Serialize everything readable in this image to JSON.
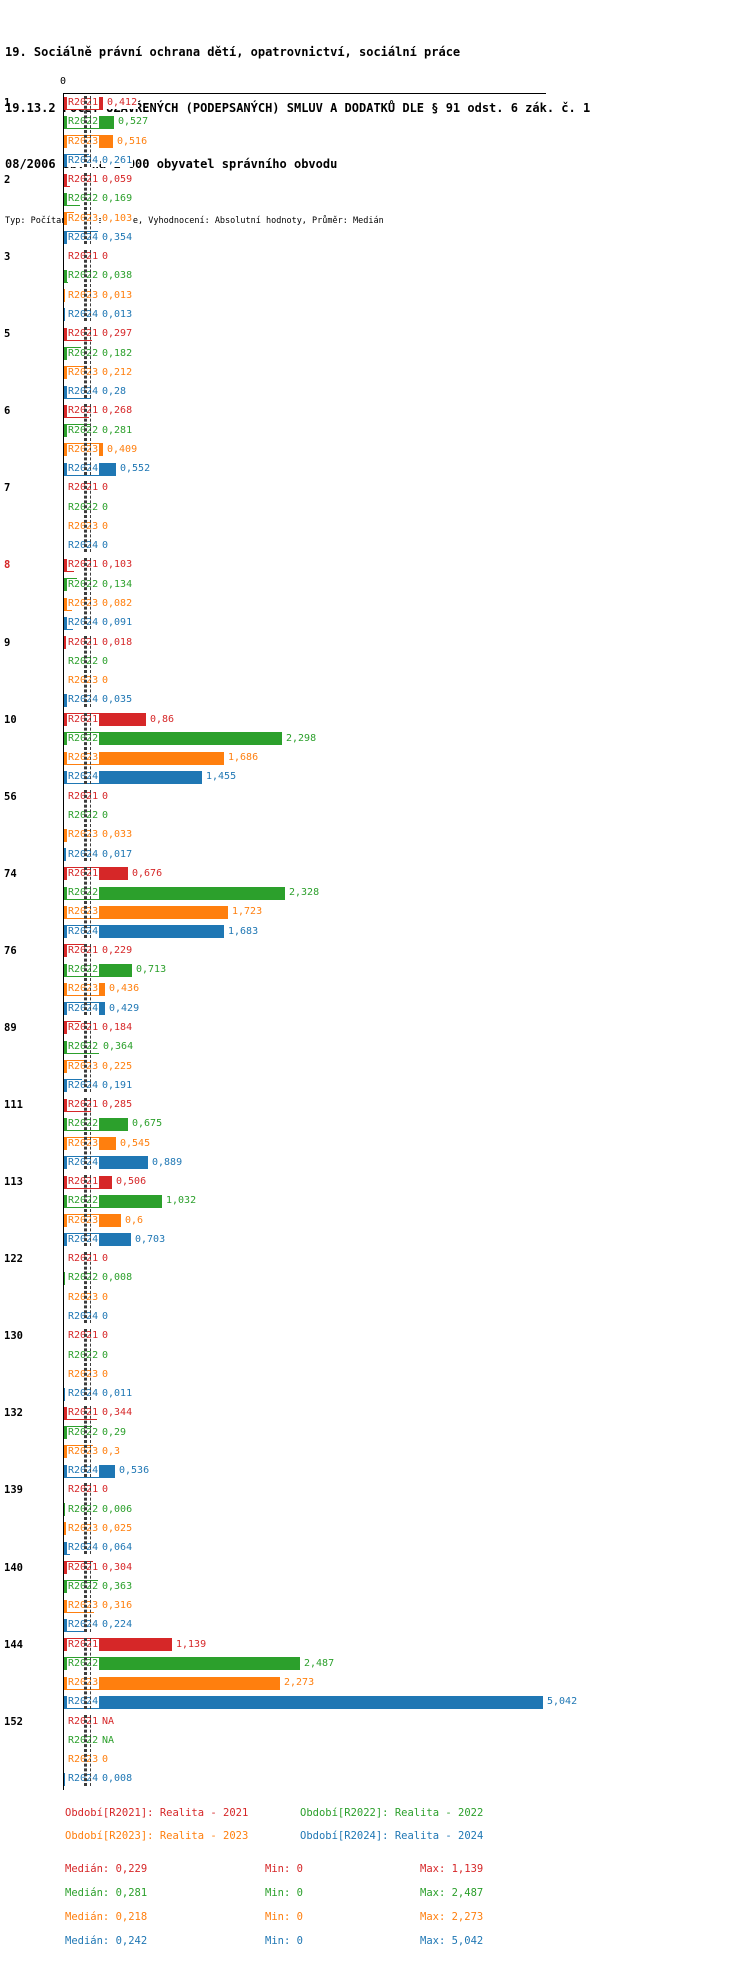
{
  "title": {
    "line1": "19. Sociálně právní ochrana dětí, opatrovnictví, sociální práce",
    "line2": "19.13.2 POČET UZAVŘENÝCH (PODEPSANÝCH) SMLUV A DODATKŮ DLE § 91 odst. 6 zák. č. 1",
    "line3": "08/2006 Sb. na 1 000 obyvatel správního obvodu",
    "line4": "Typ: Počítaný podle vzorce, Vyhodnocení: Absolutní hodnoty, Průměr: Medián"
  },
  "chart_data": {
    "type": "bar",
    "orientation": "horizontal",
    "grid": false,
    "x_axis": {
      "zero_label": "0",
      "xlim": [
        0,
        5.3
      ]
    },
    "stats_labels": {
      "median": "Medián",
      "min": "Min",
      "max": "Max"
    },
    "series": [
      {
        "name": "R2021",
        "color": "#d62728",
        "legend_label": "Období[R2021]: Realita - 2021",
        "median": 0.229,
        "median_display": "0,229",
        "min_display": "0",
        "max_display": "1,139"
      },
      {
        "name": "R2022",
        "color": "#2ca02c",
        "legend_label": "Období[R2022]: Realita - 2022",
        "median": 0.281,
        "median_display": "0,281",
        "min_display": "0",
        "max_display": "2,487"
      },
      {
        "name": "R2023",
        "color": "#ff7f0e",
        "legend_label": "Období[R2023]: Realita - 2023",
        "median": 0.218,
        "median_display": "0,218",
        "min_display": "0",
        "max_display": "2,273"
      },
      {
        "name": "R2024",
        "color": "#1f77b4",
        "legend_label": "Období[R2024]: Realita - 2024",
        "median": 0.242,
        "median_display": "0,242",
        "min_display": "0",
        "max_display": "5,042"
      }
    ],
    "groups": [
      {
        "id": "1",
        "highlight": false,
        "values": [
          0.412,
          0.527,
          0.516,
          0.261
        ],
        "display": [
          "0,412",
          "0,527",
          "0,516",
          "0,261"
        ]
      },
      {
        "id": "2",
        "highlight": false,
        "values": [
          0.059,
          0.169,
          0.103,
          0.354
        ],
        "display": [
          "0,059",
          "0,169",
          "0,103",
          "0,354"
        ]
      },
      {
        "id": "3",
        "highlight": false,
        "values": [
          0,
          0.038,
          0.013,
          0.013
        ],
        "display": [
          "0",
          "0,038",
          "0,013",
          "0,013"
        ]
      },
      {
        "id": "5",
        "highlight": false,
        "values": [
          0.297,
          0.182,
          0.212,
          0.28
        ],
        "display": [
          "0,297",
          "0,182",
          "0,212",
          "0,28"
        ]
      },
      {
        "id": "6",
        "highlight": false,
        "values": [
          0.268,
          0.281,
          0.409,
          0.552
        ],
        "display": [
          "0,268",
          "0,281",
          "0,409",
          "0,552"
        ]
      },
      {
        "id": "7",
        "highlight": false,
        "values": [
          0,
          0,
          0,
          0
        ],
        "display": [
          "0",
          "0",
          "0",
          "0"
        ]
      },
      {
        "id": "8",
        "highlight": true,
        "values": [
          0.103,
          0.134,
          0.082,
          0.091
        ],
        "display": [
          "0,103",
          "0,134",
          "0,082",
          "0,091"
        ]
      },
      {
        "id": "9",
        "highlight": false,
        "values": [
          0.018,
          0,
          0,
          0.035
        ],
        "display": [
          "0,018",
          "0",
          "0",
          "0,035"
        ]
      },
      {
        "id": "10",
        "highlight": false,
        "values": [
          0.86,
          2.298,
          1.686,
          1.455
        ],
        "display": [
          "0,86",
          "2,298",
          "1,686",
          "1,455"
        ]
      },
      {
        "id": "56",
        "highlight": false,
        "values": [
          0,
          0,
          0.033,
          0.017
        ],
        "display": [
          "0",
          "0",
          "0,033",
          "0,017"
        ]
      },
      {
        "id": "74",
        "highlight": false,
        "values": [
          0.676,
          2.328,
          1.723,
          1.683
        ],
        "display": [
          "0,676",
          "2,328",
          "1,723",
          "1,683"
        ]
      },
      {
        "id": "76",
        "highlight": false,
        "values": [
          0.229,
          0.713,
          0.436,
          0.429
        ],
        "display": [
          "0,229",
          "0,713",
          "0,436",
          "0,429"
        ]
      },
      {
        "id": "89",
        "highlight": false,
        "values": [
          0.184,
          0.364,
          0.225,
          0.191
        ],
        "display": [
          "0,184",
          "0,364",
          "0,225",
          "0,191"
        ]
      },
      {
        "id": "111",
        "highlight": false,
        "values": [
          0.285,
          0.675,
          0.545,
          0.889
        ],
        "display": [
          "0,285",
          "0,675",
          "0,545",
          "0,889"
        ]
      },
      {
        "id": "113",
        "highlight": false,
        "values": [
          0.506,
          1.032,
          0.6,
          0.703
        ],
        "display": [
          "0,506",
          "1,032",
          "0,6",
          "0,703"
        ]
      },
      {
        "id": "122",
        "highlight": false,
        "values": [
          0,
          0.008,
          0,
          0
        ],
        "display": [
          "0",
          "0,008",
          "0",
          "0"
        ]
      },
      {
        "id": "130",
        "highlight": false,
        "values": [
          0,
          0,
          0,
          0.011
        ],
        "display": [
          "0",
          "0",
          "0",
          "0,011"
        ]
      },
      {
        "id": "132",
        "highlight": false,
        "values": [
          0.344,
          0.29,
          0.3,
          0.536
        ],
        "display": [
          "0,344",
          "0,29",
          "0,3",
          "0,536"
        ]
      },
      {
        "id": "139",
        "highlight": false,
        "values": [
          0,
          0.006,
          0.025,
          0.064
        ],
        "display": [
          "0",
          "0,006",
          "0,025",
          "0,064"
        ]
      },
      {
        "id": "140",
        "highlight": false,
        "values": [
          0.304,
          0.363,
          0.316,
          0.224
        ],
        "display": [
          "0,304",
          "0,363",
          "0,316",
          "0,224"
        ]
      },
      {
        "id": "144",
        "highlight": false,
        "values": [
          1.139,
          2.487,
          2.273,
          5.042
        ],
        "display": [
          "1,139",
          "2,487",
          "2,273",
          "5,042"
        ]
      },
      {
        "id": "152",
        "highlight": false,
        "values": [
          null,
          null,
          0,
          0.008
        ],
        "display": [
          "NA",
          "NA",
          "0",
          "0,008"
        ]
      }
    ]
  }
}
